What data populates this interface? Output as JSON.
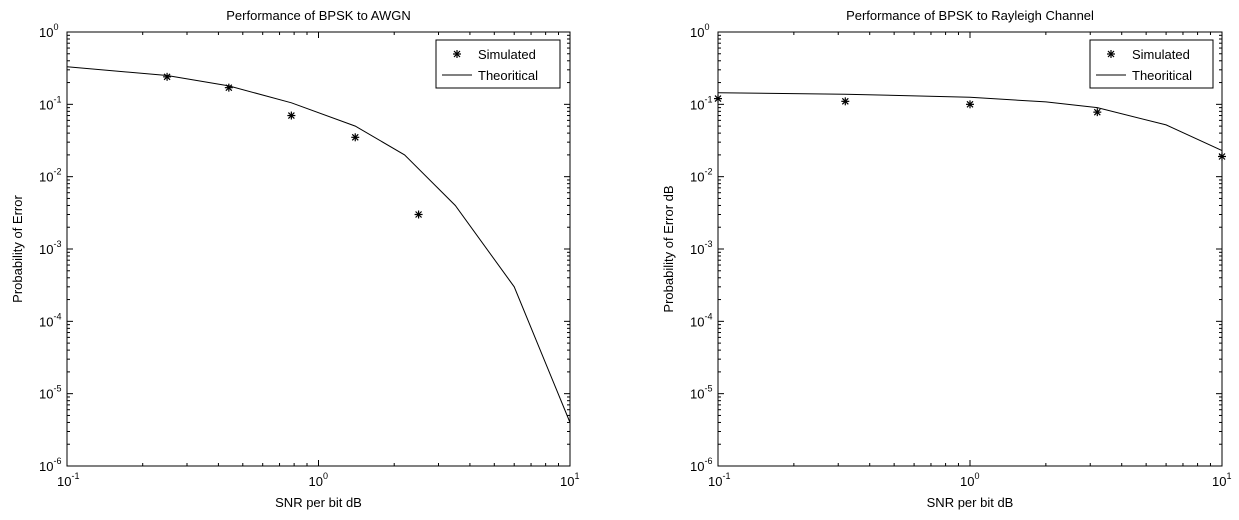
{
  "chart_data": [
    {
      "type": "scatter",
      "title": "Performance of BPSK to AWGN",
      "xlabel": "SNR per bit   dB",
      "ylabel": "Probability of Error",
      "xscale": "log",
      "yscale": "log",
      "xlim": [
        0.1,
        10
      ],
      "ylim": [
        1e-06,
        1
      ],
      "grid": false,
      "legend_position": "top-right",
      "x_ticks": [
        {
          "base": "10",
          "exp": "-1"
        },
        {
          "base": "10",
          "exp": "0"
        },
        {
          "base": "10",
          "exp": "1"
        }
      ],
      "y_ticks": [
        {
          "base": "10",
          "exp": "-6"
        },
        {
          "base": "10",
          "exp": "-5"
        },
        {
          "base": "10",
          "exp": "-4"
        },
        {
          "base": "10",
          "exp": "-3"
        },
        {
          "base": "10",
          "exp": "-2"
        },
        {
          "base": "10",
          "exp": "-1"
        },
        {
          "base": "10",
          "exp": "0"
        }
      ],
      "series": [
        {
          "name": "Simulated",
          "style": "markers",
          "x": [
            0.25,
            0.44,
            0.78,
            1.4,
            2.5
          ],
          "y": [
            0.24,
            0.17,
            0.07,
            0.035,
            0.003
          ]
        },
        {
          "name": "Theoritical",
          "style": "line",
          "x": [
            0.1,
            0.25,
            0.44,
            0.78,
            1.4,
            2.2,
            3.5,
            6,
            10
          ],
          "y": [
            0.33,
            0.25,
            0.18,
            0.105,
            0.05,
            0.02,
            0.004,
            0.0003,
            4e-06
          ]
        }
      ]
    },
    {
      "type": "scatter",
      "title": "Performance of BPSK to Rayleigh Channel",
      "xlabel": "SNR per bit   dB",
      "ylabel": "Probability of Error   dB",
      "xscale": "log",
      "yscale": "log",
      "xlim": [
        0.1,
        10
      ],
      "ylim": [
        1e-06,
        1
      ],
      "grid": false,
      "legend_position": "top-right",
      "x_ticks": [
        {
          "base": "10",
          "exp": "-1"
        },
        {
          "base": "10",
          "exp": "0"
        },
        {
          "base": "10",
          "exp": "1"
        }
      ],
      "y_ticks": [
        {
          "base": "10",
          "exp": "-6"
        },
        {
          "base": "10",
          "exp": "-5"
        },
        {
          "base": "10",
          "exp": "-4"
        },
        {
          "base": "10",
          "exp": "-3"
        },
        {
          "base": "10",
          "exp": "-2"
        },
        {
          "base": "10",
          "exp": "-1"
        },
        {
          "base": "10",
          "exp": "0"
        }
      ],
      "series": [
        {
          "name": "Simulated",
          "style": "markers",
          "x": [
            0.1,
            0.32,
            1,
            3.2,
            10
          ],
          "y": [
            0.12,
            0.11,
            0.1,
            0.078,
            0.019
          ]
        },
        {
          "name": "Theoritical",
          "style": "line",
          "x": [
            0.1,
            0.32,
            1,
            2,
            3.2,
            6,
            10
          ],
          "y": [
            0.145,
            0.138,
            0.125,
            0.108,
            0.09,
            0.052,
            0.023
          ]
        }
      ]
    }
  ]
}
